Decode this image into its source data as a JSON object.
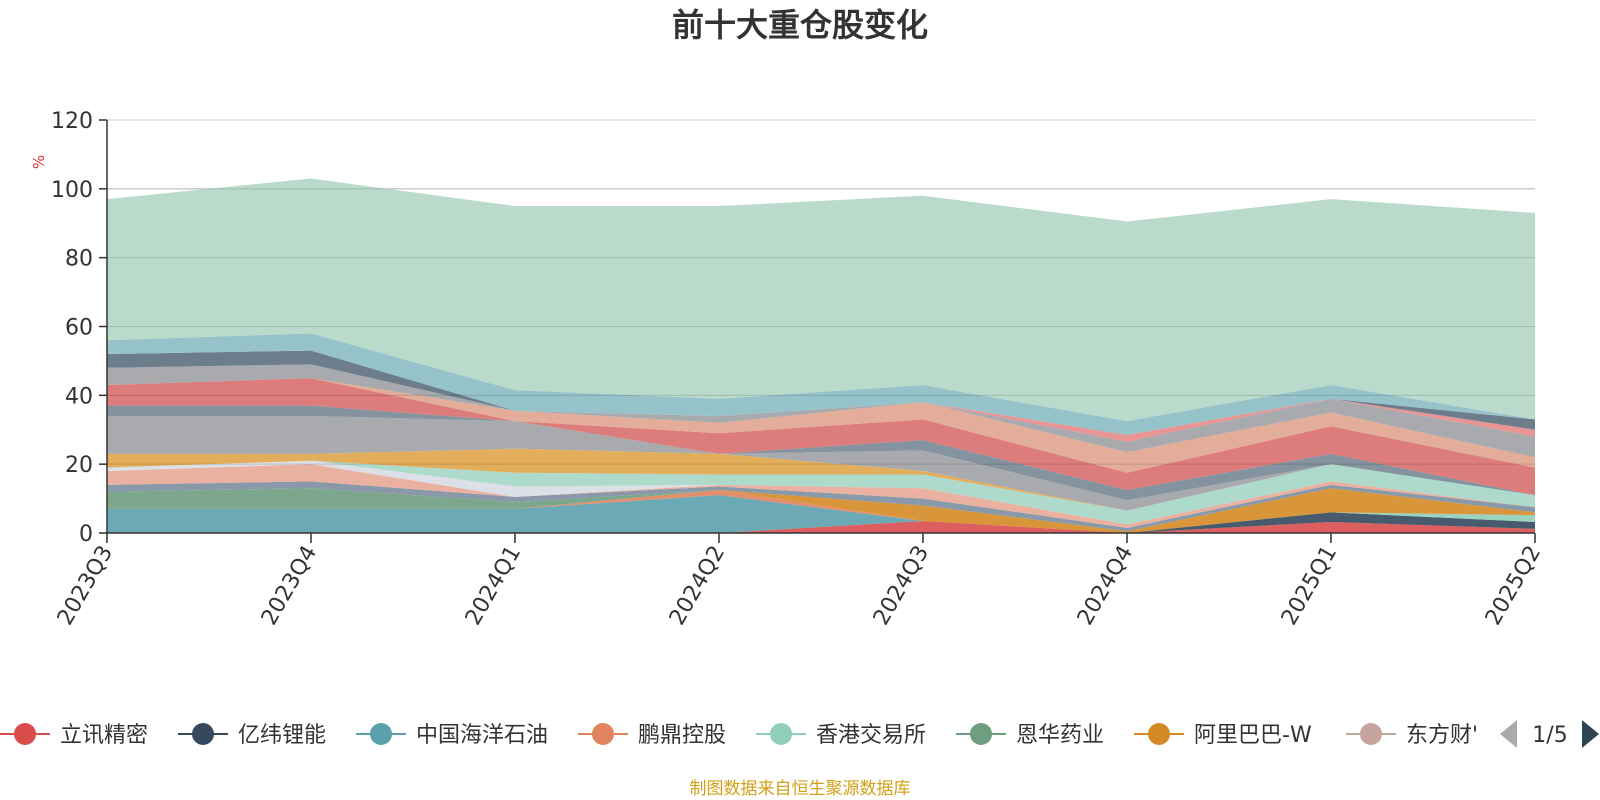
{
  "chart_data": {
    "type": "area",
    "title": "前十大重仓股变化",
    "ylabel": "%",
    "ylim": [
      0,
      120
    ],
    "yticks": [
      0,
      20,
      40,
      60,
      80,
      100,
      120
    ],
    "categories": [
      "2023Q3",
      "2023Q4",
      "2024Q1",
      "2024Q2",
      "2024Q3",
      "2024Q4",
      "2025Q1",
      "2025Q2"
    ],
    "grid": true,
    "series": [
      {
        "name": "立讯精密",
        "color": "#d94c4c",
        "values": [
          0,
          0,
          0,
          0,
          3.5,
          0,
          3.2,
          1.2
        ]
      },
      {
        "name": "亿纬锂能",
        "color": "#34495e",
        "values": [
          0,
          0,
          0,
          0,
          0,
          0,
          2.8,
          2.0
        ]
      },
      {
        "name": "中国海洋石油",
        "color": "#5aa0ad",
        "values": [
          7,
          7,
          7,
          11,
          0,
          0,
          0,
          0
        ]
      },
      {
        "name": "鹏鼎控股",
        "color": "#e0835e",
        "values": [
          0,
          0,
          0,
          1.5,
          0,
          0,
          0,
          0
        ]
      },
      {
        "name": "香港交易所",
        "color": "#8fcfb8",
        "values": [
          0,
          0,
          0,
          0,
          0,
          0,
          0,
          2.0
        ]
      },
      {
        "name": "恩华药业",
        "color": "#6f9d80",
        "values": [
          5,
          6,
          2,
          0,
          0,
          0,
          0,
          0
        ]
      },
      {
        "name": "阿里巴巴-W",
        "color": "#d48a24",
        "values": [
          0,
          0,
          0,
          0,
          4.5,
          0.5,
          7.0,
          0.8
        ]
      },
      {
        "name": "东方财富",
        "color": "#c4a49c",
        "values": [
          0,
          0,
          0,
          0,
          0,
          0,
          0,
          0
        ]
      }
    ],
    "legend": {
      "position": "bottom",
      "page": "1/5"
    }
  },
  "legend_items": [
    {
      "name": "立讯精密",
      "color": "#d94c4c"
    },
    {
      "name": "亿纬锂能",
      "color": "#34495e"
    },
    {
      "name": "中国海洋石油",
      "color": "#5aa0ad"
    },
    {
      "name": "鹏鼎控股",
      "color": "#e0835e"
    },
    {
      "name": "香港交易所",
      "color": "#8fcfb8"
    },
    {
      "name": "恩华药业",
      "color": "#6f9d80"
    },
    {
      "name": "阿里巴巴-W",
      "color": "#d48a24"
    },
    {
      "name": "东方财'",
      "color": "#c4a49c"
    }
  ],
  "legend_page": "1/5",
  "source_note": "制图数据来自恒生聚源数据库",
  "background_layers": [
    {
      "color": "#7d8ea0",
      "values": [
        2,
        2,
        1.5,
        1,
        2,
        1,
        1,
        1.5
      ]
    },
    {
      "color": "#e8a897",
      "values": [
        4,
        5,
        0,
        0.5,
        3,
        1,
        1,
        0
      ]
    },
    {
      "color": "#d8dde3",
      "values": [
        1,
        1,
        3,
        0,
        0,
        0,
        0,
        0
      ]
    },
    {
      "color": "#a5d6c6",
      "values": [
        0,
        0,
        4,
        3,
        4,
        4,
        5,
        3.5
      ]
    },
    {
      "color": "#e0a54a",
      "values": [
        4,
        2,
        7,
        6,
        1,
        0,
        0,
        0
      ]
    },
    {
      "color": "#9ea1a5",
      "values": [
        11,
        11,
        8,
        0,
        6,
        3,
        0,
        0
      ]
    },
    {
      "color": "#778795",
      "values": [
        3,
        3,
        0,
        0,
        3,
        3,
        3,
        0
      ]
    },
    {
      "color": "#d96e6e",
      "values": [
        6,
        8,
        0,
        6,
        6,
        5,
        8,
        8
      ]
    },
    {
      "color": "#e0a48e",
      "values": [
        0,
        0,
        3,
        3,
        5,
        6,
        4,
        3
      ]
    },
    {
      "color": "#9ea1a5",
      "values": [
        5,
        4,
        0,
        2,
        0,
        3,
        4,
        6
      ]
    },
    {
      "color": "#e58a8a",
      "values": [
        0,
        0,
        0,
        0,
        0,
        2,
        0,
        2
      ]
    },
    {
      "color": "#5c7080",
      "values": [
        4,
        4,
        0,
        0,
        0,
        0,
        0,
        3
      ]
    },
    {
      "color": "#8bbcc4",
      "values": [
        4,
        5,
        6,
        5,
        5,
        4,
        4,
        0
      ]
    },
    {
      "color": "#b2d6c5",
      "values": [
        41,
        45,
        53.5,
        56,
        55,
        58,
        54,
        60
      ]
    }
  ]
}
